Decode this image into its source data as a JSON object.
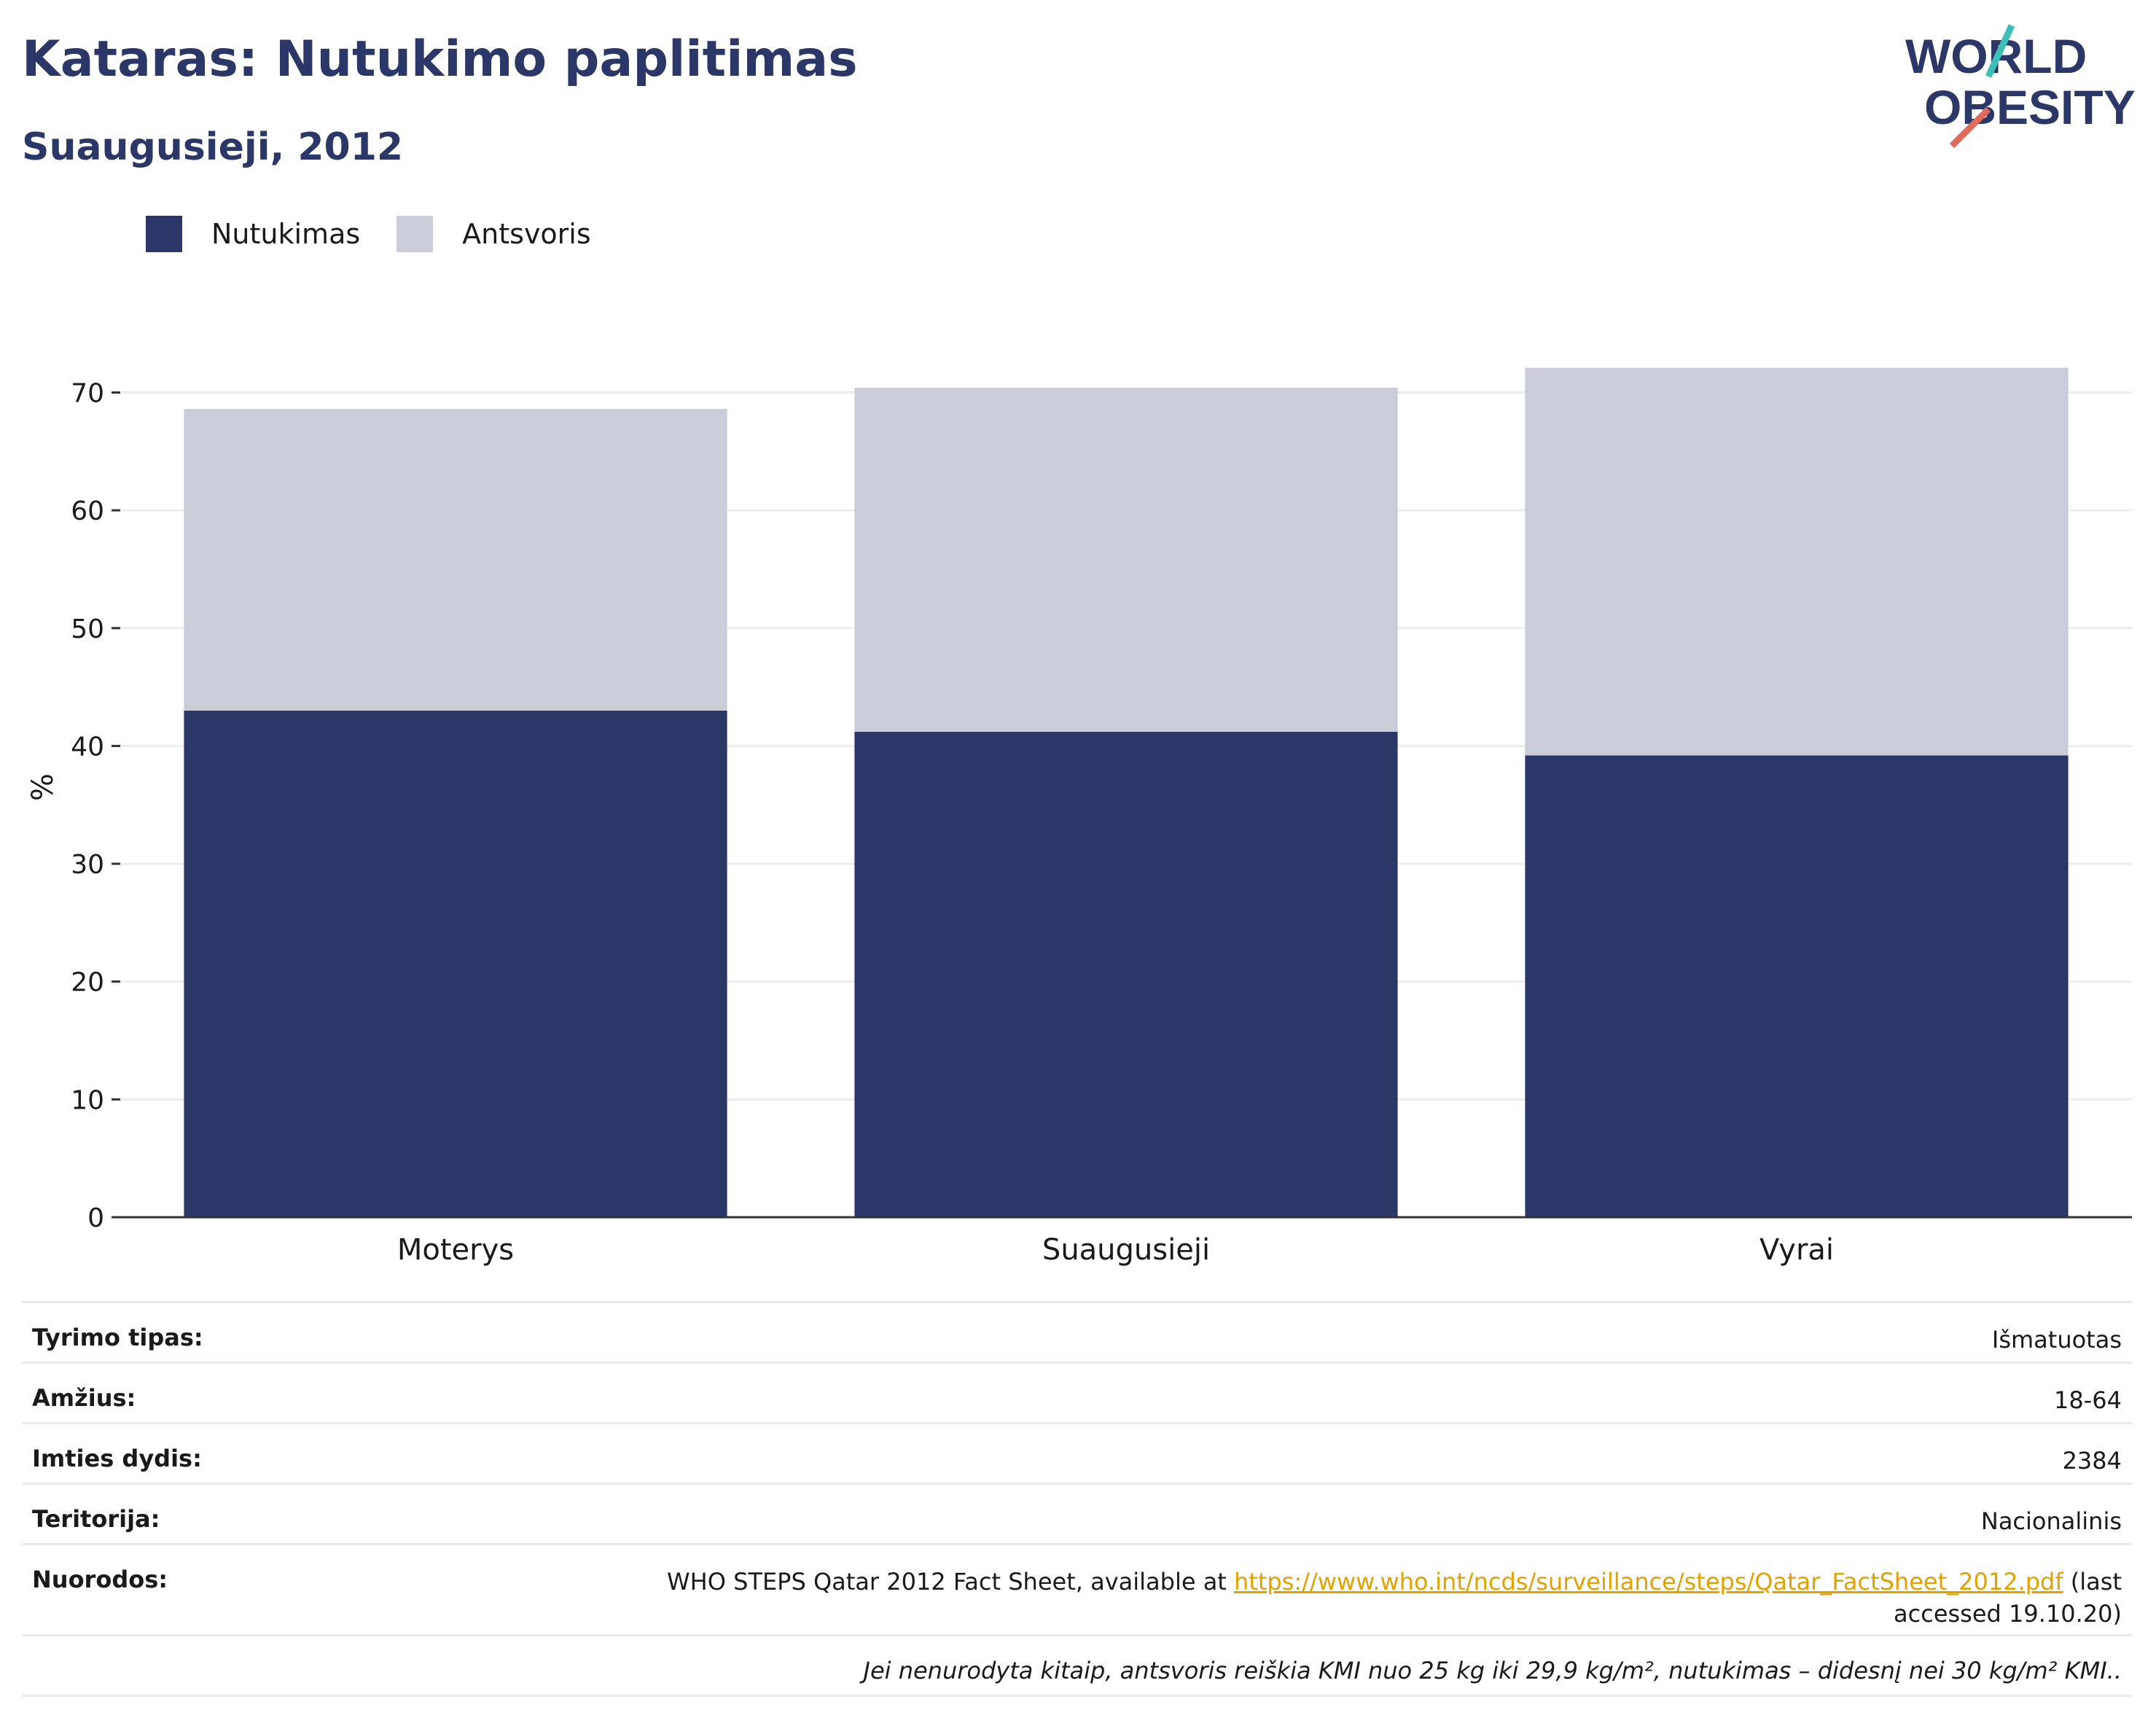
{
  "title": "Kataras: Nutukimo paplitimas",
  "subtitle": "Suaugusieji, 2012",
  "logo": {
    "line1": "WORLD",
    "line2": "OBESITY"
  },
  "colors": {
    "obesity": "#2b3766",
    "overweight": "#caccd7",
    "title": "#2b3766",
    "link": "#e3a100"
  },
  "chart_data": {
    "type": "bar",
    "stacked": true,
    "categories": [
      "Moterys",
      "Suaugusieji",
      "Vyrai"
    ],
    "series": [
      {
        "name": "Nutukimas",
        "values": [
          43.0,
          41.2,
          39.2
        ]
      },
      {
        "name": "Antsvoris",
        "values": [
          25.6,
          29.2,
          32.9
        ]
      }
    ],
    "ylabel": "%",
    "xlabel": "",
    "ylim": [
      0,
      73
    ],
    "yticks": [
      0,
      10,
      20,
      30,
      40,
      50,
      60,
      70
    ],
    "grid": true,
    "legend_position": "top-left"
  },
  "info": {
    "rows": [
      {
        "key": "Tyrimo tipas:",
        "value": "Išmatuotas"
      },
      {
        "key": "Amžius:",
        "value": "18-64"
      },
      {
        "key": "Imties dydis:",
        "value": "2384"
      },
      {
        "key": "Teritorija:",
        "value": "Nacionalinis"
      }
    ],
    "references": {
      "key": "Nuorodos:",
      "prefix": "WHO STEPS Qatar 2012 Fact Sheet, available at ",
      "link": "https://www.who.int/ncds/surveillance/steps/Qatar_FactSheet_2012.pdf",
      "suffix": " (last accessed 19.10.20)"
    },
    "note": "Jei nenurodyta kitaip, antsvoris reiškia KMI nuo 25 kg iki 29,9 kg/m², nutukimas – didesnį nei 30 kg/m² KMI.."
  }
}
